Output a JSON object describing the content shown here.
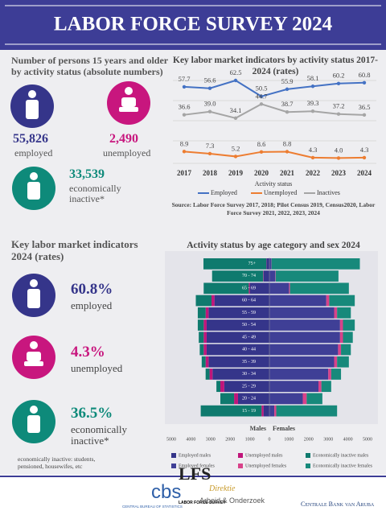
{
  "header": {
    "title": "LABOR FORCE SURVEY 2024"
  },
  "absolute": {
    "title": "Number of persons 15 years and older by activity status (absolute numbers)",
    "items": [
      {
        "value": "55,826",
        "label": "employed"
      },
      {
        "value": "2,490",
        "label": "unemployed"
      },
      {
        "value": "33,539",
        "label": "economically inactive*"
      }
    ]
  },
  "rates": {
    "title": "Key labor market indicators 2024 (rates)",
    "items": [
      {
        "value": "60.8%",
        "label": "employed"
      },
      {
        "value": "4.3%",
        "label": "unemployed"
      },
      {
        "value": "36.5%",
        "label": "economically inactive*"
      }
    ]
  },
  "footnote": "economically inactive: students, pensioned,  housewifes, etc",
  "chart_data": [
    {
      "type": "line",
      "title": "Key labor market indicators by activity status 2017-2024 (rates)",
      "categories": [
        "2017",
        "2018",
        "2019",
        "2020",
        "2021",
        "2022",
        "2023",
        "2024"
      ],
      "legend_title": "Activity status",
      "series": [
        {
          "name": "Employed",
          "color": "#4472c4",
          "values": [
            57.7,
            56.6,
            62.5,
            50.5,
            55.9,
            58.1,
            60.2,
            60.8
          ],
          "value_labels": [
            "57.7",
            "56.6",
            "62.5",
            "50.5",
            "55.9",
            "58.1",
            "60.2",
            "60.8"
          ]
        },
        {
          "name": "Unemployed",
          "color": "#ed7d31",
          "values": [
            8.9,
            7.3,
            5.2,
            8.6,
            8.8,
            4.3,
            4.0,
            4.3
          ],
          "value_labels": [
            "8.9",
            "7.3",
            "5.2",
            "8.6",
            "8.8",
            "4.3",
            "4.0",
            "4.3"
          ]
        },
        {
          "name": "Inactives",
          "color": "#a5a5a5",
          "values": [
            36.6,
            39.0,
            34.1,
            44.7,
            38.7,
            39.3,
            37.2,
            36.5
          ],
          "value_labels": [
            "36.6",
            "39.0",
            "34.1",
            "44.7",
            "38.7",
            "39.3",
            "37.2",
            "36.5"
          ]
        }
      ],
      "source": "Source: Labor Force Survey 2017, 2018; Pilot Census 2019, Census2020, Labor Force Survey 2021, 2022, 2023, 2024"
    },
    {
      "type": "pyramid",
      "title": "Activity status by age category and sex 2024",
      "categories": [
        "15 - 19",
        "20 - 24",
        "25 - 29",
        "30 - 34",
        "35 - 39",
        "40 - 44",
        "45 - 49",
        "50 - 54",
        "55 - 59",
        "60 - 64",
        "65 - 69",
        "70 - 74",
        "75+"
      ],
      "side_labels": [
        "Males",
        "Females"
      ],
      "xlim": [
        -5000,
        5000
      ],
      "xticks": [
        {
          "value": -5000,
          "label": "5000"
        },
        {
          "value": -4000,
          "label": "4000"
        },
        {
          "value": -3000,
          "label": "3000"
        },
        {
          "value": -2000,
          "label": "2000"
        },
        {
          "value": -1000,
          "label": "1000"
        },
        0,
        1000,
        2000,
        3000,
        4000,
        5000
      ],
      "series": [
        {
          "name": "Employed males",
          "color": "#35358a",
          "values": [
            300,
            1600,
            2300,
            2900,
            3100,
            3200,
            3200,
            3200,
            3100,
            2800,
            1000,
            300,
            150
          ]
        },
        {
          "name": "Unemployed males",
          "color": "#c0157a",
          "values": [
            100,
            200,
            200,
            150,
            150,
            150,
            150,
            150,
            150,
            150,
            50,
            20,
            10
          ]
        },
        {
          "name": "Economically inactive males",
          "color": "#0f7a6e",
          "values": [
            3100,
            700,
            200,
            200,
            200,
            200,
            250,
            300,
            400,
            800,
            2300,
            2600,
            3200
          ]
        },
        {
          "name": "Employed females",
          "color": "#3f3f96",
          "values": [
            250,
            1700,
            2500,
            3000,
            3300,
            3500,
            3600,
            3600,
            3300,
            2900,
            1000,
            300,
            100
          ]
        },
        {
          "name": "Unemployed females",
          "color": "#d8428a",
          "values": [
            100,
            200,
            150,
            150,
            150,
            150,
            150,
            150,
            150,
            150,
            50,
            20,
            10
          ]
        },
        {
          "name": "Economically inactive females",
          "color": "#17897b",
          "values": [
            3100,
            800,
            500,
            500,
            600,
            500,
            500,
            600,
            700,
            1300,
            3000,
            3200,
            4500
          ]
        }
      ]
    }
  ],
  "footer": {
    "lfs": "LFS",
    "lfs_sub": "LABOR FORCE SURVEY",
    "cbs": "cbs",
    "cbs_sub": "CENTRAL BUREAU OF STATISTICS",
    "dao": "Direktie",
    "dao_sub": "Arbeid & Onderzoek",
    "cba": "Centrale Bank van Aruba"
  }
}
